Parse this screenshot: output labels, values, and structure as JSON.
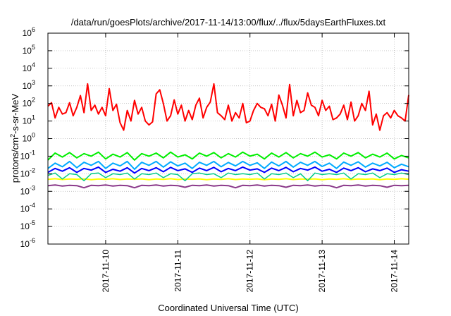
{
  "chart_data": {
    "type": "line",
    "title": "/data/run/goesPlots/archive/2017-11-14/13:00/flux/../flux/5daysEarthFluxes.txt",
    "xlabel": "Coordinated Universal Time (UTC)",
    "ylabel_base": "protons/cm",
    "ylabel_sup": "2",
    "ylabel_rest": "-s-sr-MeV",
    "yscale": "log",
    "ylim": [
      1e-06,
      1000000.0
    ],
    "xlim": [
      0,
      5.0
    ],
    "grid": true,
    "legend": "none",
    "x_ticks": [
      {
        "x": 0.8,
        "label": "2017-11-10"
      },
      {
        "x": 1.8,
        "label": "2017-11-11"
      },
      {
        "x": 2.8,
        "label": "2017-11-12"
      },
      {
        "x": 3.8,
        "label": "2017-11-13"
      },
      {
        "x": 4.8,
        "label": "2017-11-14"
      }
    ],
    "y_ticks": [
      {
        "exp": -6,
        "label": "10",
        "sup": "-6"
      },
      {
        "exp": -5,
        "label": "10",
        "sup": "-5"
      },
      {
        "exp": -4,
        "label": "10",
        "sup": "-4"
      },
      {
        "exp": -3,
        "label": "10",
        "sup": "-3"
      },
      {
        "exp": -2,
        "label": "10",
        "sup": "-2"
      },
      {
        "exp": -1,
        "label": "10",
        "sup": "-1"
      },
      {
        "exp": 0,
        "label": "10",
        "sup": "0"
      },
      {
        "exp": 1,
        "label": "10",
        "sup": "1"
      },
      {
        "exp": 2,
        "label": "10",
        "sup": "2"
      },
      {
        "exp": 3,
        "label": "10",
        "sup": "3"
      },
      {
        "exp": 4,
        "label": "10",
        "sup": "4"
      },
      {
        "exp": 5,
        "label": "10",
        "sup": "5"
      },
      {
        "exp": 6,
        "label": "10",
        "sup": "6"
      }
    ],
    "series": [
      {
        "color": "#ff0000",
        "width": 2,
        "x": [
          0.0,
          0.05,
          0.1,
          0.15,
          0.2,
          0.25,
          0.3,
          0.35,
          0.4,
          0.45,
          0.5,
          0.55,
          0.6,
          0.65,
          0.7,
          0.75,
          0.8,
          0.85,
          0.9,
          0.95,
          1.0,
          1.05,
          1.1,
          1.15,
          1.2,
          1.25,
          1.3,
          1.35,
          1.4,
          1.45,
          1.5,
          1.55,
          1.6,
          1.65,
          1.7,
          1.75,
          1.8,
          1.85,
          1.9,
          1.95,
          2.0,
          2.05,
          2.1,
          2.15,
          2.2,
          2.25,
          2.3,
          2.35,
          2.4,
          2.45,
          2.5,
          2.55,
          2.6,
          2.65,
          2.7,
          2.75,
          2.8,
          2.85,
          2.9,
          2.95,
          3.0,
          3.05,
          3.1,
          3.15,
          3.2,
          3.25,
          3.3,
          3.35,
          3.4,
          3.45,
          3.5,
          3.55,
          3.6,
          3.65,
          3.7,
          3.75,
          3.8,
          3.85,
          3.9,
          3.95,
          4.0,
          4.05,
          4.1,
          4.15,
          4.2,
          4.25,
          4.3,
          4.35,
          4.4,
          4.45,
          4.5,
          4.55,
          4.6,
          4.65,
          4.7,
          4.75,
          4.8,
          4.85,
          4.9,
          4.95,
          5.0
        ],
        "y": [
          70,
          110,
          15,
          60,
          25,
          30,
          110,
          20,
          60,
          280,
          30,
          1300,
          40,
          80,
          25,
          60,
          20,
          700,
          40,
          90,
          8,
          3,
          40,
          10,
          150,
          25,
          60,
          10,
          6,
          9,
          350,
          600,
          100,
          10,
          20,
          160,
          25,
          80,
          10,
          40,
          12,
          80,
          200,
          15,
          60,
          120,
          1300,
          30,
          20,
          12,
          80,
          10,
          30,
          15,
          100,
          8,
          10,
          40,
          100,
          60,
          50,
          20,
          90,
          10,
          300,
          80,
          15,
          1200,
          20,
          150,
          30,
          40,
          400,
          80,
          60,
          20,
          150,
          40,
          70,
          12,
          15,
          25,
          80,
          12,
          120,
          10,
          20,
          100,
          40,
          500,
          6,
          25,
          3,
          20,
          30,
          15,
          40,
          20,
          15,
          10,
          300
        ]
      },
      {
        "color": "#00ee00",
        "width": 2,
        "x": [
          0.0,
          0.1,
          0.2,
          0.3,
          0.4,
          0.5,
          0.6,
          0.7,
          0.8,
          0.9,
          1.0,
          1.1,
          1.2,
          1.3,
          1.4,
          1.5,
          1.6,
          1.7,
          1.8,
          1.9,
          2.0,
          2.1,
          2.2,
          2.3,
          2.4,
          2.5,
          2.6,
          2.7,
          2.8,
          2.9,
          3.0,
          3.1,
          3.2,
          3.3,
          3.4,
          3.5,
          3.6,
          3.7,
          3.8,
          3.9,
          4.0,
          4.1,
          4.2,
          4.3,
          4.4,
          4.5,
          4.6,
          4.7,
          4.8,
          4.9,
          5.0
        ],
        "y": [
          0.06,
          0.15,
          0.09,
          0.16,
          0.08,
          0.14,
          0.1,
          0.17,
          0.07,
          0.13,
          0.09,
          0.16,
          0.06,
          0.14,
          0.1,
          0.15,
          0.08,
          0.17,
          0.09,
          0.12,
          0.07,
          0.15,
          0.1,
          0.16,
          0.08,
          0.14,
          0.09,
          0.17,
          0.1,
          0.13,
          0.07,
          0.15,
          0.09,
          0.16,
          0.08,
          0.14,
          0.1,
          0.17,
          0.09,
          0.12,
          0.07,
          0.15,
          0.1,
          0.16,
          0.08,
          0.13,
          0.09,
          0.15,
          0.07,
          0.11,
          0.08
        ]
      },
      {
        "color": "#00aaff",
        "width": 2,
        "x": [
          0.0,
          0.1,
          0.2,
          0.3,
          0.4,
          0.5,
          0.6,
          0.7,
          0.8,
          0.9,
          1.0,
          1.1,
          1.2,
          1.3,
          1.4,
          1.5,
          1.6,
          1.7,
          1.8,
          1.9,
          2.0,
          2.1,
          2.2,
          2.3,
          2.4,
          2.5,
          2.6,
          2.7,
          2.8,
          2.9,
          3.0,
          3.1,
          3.2,
          3.3,
          3.4,
          3.5,
          3.6,
          3.7,
          3.8,
          3.9,
          4.0,
          4.1,
          4.2,
          4.3,
          4.4,
          4.5,
          4.6,
          4.7,
          4.8,
          4.9,
          5.0
        ],
        "y": [
          0.02,
          0.04,
          0.025,
          0.05,
          0.022,
          0.045,
          0.03,
          0.05,
          0.02,
          0.04,
          0.028,
          0.05,
          0.018,
          0.045,
          0.03,
          0.05,
          0.024,
          0.048,
          0.028,
          0.04,
          0.02,
          0.045,
          0.03,
          0.05,
          0.025,
          0.044,
          0.028,
          0.05,
          0.03,
          0.042,
          0.02,
          0.046,
          0.028,
          0.05,
          0.024,
          0.045,
          0.03,
          0.05,
          0.026,
          0.04,
          0.02,
          0.046,
          0.03,
          0.048,
          0.024,
          0.04,
          0.028,
          0.045,
          0.022,
          0.035,
          0.025
        ]
      },
      {
        "color": "#0000ff",
        "width": 2,
        "x": [
          0.0,
          0.1,
          0.2,
          0.3,
          0.4,
          0.5,
          0.6,
          0.7,
          0.8,
          0.9,
          1.0,
          1.1,
          1.2,
          1.3,
          1.4,
          1.5,
          1.6,
          1.7,
          1.8,
          1.9,
          2.0,
          2.1,
          2.2,
          2.3,
          2.4,
          2.5,
          2.6,
          2.7,
          2.8,
          2.9,
          3.0,
          3.1,
          3.2,
          3.3,
          3.4,
          3.5,
          3.6,
          3.7,
          3.8,
          3.9,
          4.0,
          4.1,
          4.2,
          4.3,
          4.4,
          4.5,
          4.6,
          4.7,
          4.8,
          4.9,
          5.0
        ],
        "y": [
          0.012,
          0.02,
          0.014,
          0.022,
          0.012,
          0.02,
          0.016,
          0.024,
          0.012,
          0.018,
          0.014,
          0.022,
          0.011,
          0.02,
          0.015,
          0.022,
          0.013,
          0.023,
          0.015,
          0.019,
          0.012,
          0.021,
          0.015,
          0.023,
          0.013,
          0.02,
          0.015,
          0.024,
          0.016,
          0.019,
          0.012,
          0.021,
          0.015,
          0.023,
          0.013,
          0.02,
          0.016,
          0.024,
          0.014,
          0.018,
          0.012,
          0.021,
          0.015,
          0.022,
          0.013,
          0.019,
          0.015,
          0.021,
          0.012,
          0.017,
          0.014
        ]
      },
      {
        "color": "#00cc88",
        "width": 1.5,
        "x": [
          0.0,
          0.1,
          0.2,
          0.3,
          0.4,
          0.5,
          0.6,
          0.7,
          0.8,
          0.9,
          1.0,
          1.1,
          1.2,
          1.3,
          1.4,
          1.5,
          1.6,
          1.7,
          1.8,
          1.9,
          2.0,
          2.1,
          2.2,
          2.3,
          2.4,
          2.5,
          2.6,
          2.7,
          2.8,
          2.9,
          3.0,
          3.1,
          3.2,
          3.3,
          3.4,
          3.5,
          3.6,
          3.7,
          3.8,
          3.9,
          4.0,
          4.1,
          4.2,
          4.3,
          4.4,
          4.5,
          4.6,
          4.7,
          4.8,
          4.9,
          5.0
        ],
        "y": [
          0.008,
          0.011,
          0.005,
          0.01,
          0.009,
          0.004,
          0.01,
          0.011,
          0.006,
          0.01,
          0.009,
          0.011,
          0.005,
          0.01,
          0.009,
          0.011,
          0.006,
          0.01,
          0.009,
          0.004,
          0.01,
          0.011,
          0.009,
          0.01,
          0.006,
          0.011,
          0.009,
          0.01,
          0.009,
          0.011,
          0.005,
          0.01,
          0.009,
          0.011,
          0.006,
          0.01,
          0.004,
          0.011,
          0.009,
          0.01,
          0.009,
          0.011,
          0.005,
          0.01,
          0.009,
          0.011,
          0.006,
          0.01,
          0.009,
          0.011,
          0.009
        ]
      },
      {
        "color": "#ffff00",
        "width": 2,
        "x": [
          0.0,
          0.1,
          0.2,
          0.3,
          0.4,
          0.5,
          0.6,
          0.7,
          0.8,
          0.9,
          1.0,
          1.1,
          1.2,
          1.3,
          1.4,
          1.5,
          1.6,
          1.7,
          1.8,
          1.9,
          2.0,
          2.1,
          2.2,
          2.3,
          2.4,
          2.5,
          2.6,
          2.7,
          2.8,
          2.9,
          3.0,
          3.1,
          3.2,
          3.3,
          3.4,
          3.5,
          3.6,
          3.7,
          3.8,
          3.9,
          4.0,
          4.1,
          4.2,
          4.3,
          4.4,
          4.5,
          4.6,
          4.7,
          4.8,
          4.9,
          5.0
        ],
        "y": [
          0.0048,
          0.0052,
          0.0047,
          0.005,
          0.0049,
          0.0051,
          0.0046,
          0.005,
          0.0048,
          0.0052,
          0.0047,
          0.005,
          0.0049,
          0.0051,
          0.0046,
          0.005,
          0.0048,
          0.0052,
          0.0047,
          0.005,
          0.0049,
          0.0051,
          0.0046,
          0.005,
          0.0048,
          0.0052,
          0.0047,
          0.005,
          0.0049,
          0.0051,
          0.0046,
          0.005,
          0.0048,
          0.0052,
          0.0047,
          0.005,
          0.0049,
          0.0051,
          0.0046,
          0.005,
          0.0048,
          0.0052,
          0.0047,
          0.005,
          0.0049,
          0.0051,
          0.0046,
          0.005,
          0.0048,
          0.0052,
          0.0049
        ]
      },
      {
        "color": "#8b3a8b",
        "width": 2,
        "x": [
          0.0,
          0.1,
          0.2,
          0.3,
          0.4,
          0.5,
          0.6,
          0.7,
          0.8,
          0.9,
          1.0,
          1.1,
          1.2,
          1.3,
          1.4,
          1.5,
          1.6,
          1.7,
          1.8,
          1.9,
          2.0,
          2.1,
          2.2,
          2.3,
          2.4,
          2.5,
          2.6,
          2.7,
          2.8,
          2.9,
          3.0,
          3.1,
          3.2,
          3.3,
          3.4,
          3.5,
          3.6,
          3.7,
          3.8,
          3.9,
          4.0,
          4.1,
          4.2,
          4.3,
          4.4,
          4.5,
          4.6,
          4.7,
          4.8,
          4.9,
          5.0
        ],
        "y": [
          0.0021,
          0.0023,
          0.002,
          0.0022,
          0.0021,
          0.0016,
          0.0022,
          0.0021,
          0.0023,
          0.002,
          0.0022,
          0.0021,
          0.0016,
          0.0022,
          0.0021,
          0.0023,
          0.002,
          0.0022,
          0.0021,
          0.0017,
          0.0022,
          0.0021,
          0.0023,
          0.002,
          0.0022,
          0.0021,
          0.0016,
          0.0022,
          0.0021,
          0.0023,
          0.002,
          0.0022,
          0.0021,
          0.0017,
          0.0022,
          0.0021,
          0.0023,
          0.002,
          0.0022,
          0.0021,
          0.0016,
          0.0022,
          0.0021,
          0.0023,
          0.002,
          0.0022,
          0.0021,
          0.0017,
          0.0022,
          0.0021,
          0.0022
        ]
      }
    ]
  }
}
